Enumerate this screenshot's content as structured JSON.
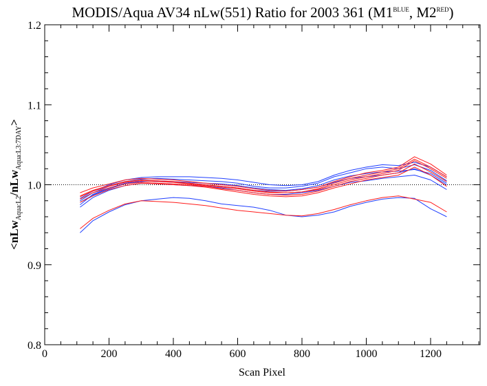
{
  "page_title": {
    "main": "MODIS/Aqua AV34 nLw(551) Ratio for 2003 361 (M1",
    "sup1": "BLUE",
    "mid": ", M2",
    "sup2": "RED",
    "end": ")"
  },
  "axes": {
    "xlabel": "Scan Pixel",
    "ylabel_parts": {
      "a": "<nLw",
      "sub1": "Aqua:L2",
      "b": "/nLw",
      "sub2": "Aqua:L3:7DAY",
      "c": ">"
    }
  },
  "chart_data": {
    "type": "line",
    "title": "MODIS/Aqua AV34 nLw(551) Ratio for 2003 361 (M1^BLUE, M2^RED)",
    "xlabel": "Scan Pixel",
    "ylabel": "<nLw Aqua:L2 / nLw Aqua:L3:7DAY>",
    "xlim": [
      0,
      1354
    ],
    "ylim": [
      0.8,
      1.2
    ],
    "x_ticks": [
      0,
      200,
      400,
      600,
      800,
      1000,
      1200
    ],
    "x_tick_labels": [
      "0",
      "200",
      "400",
      "600",
      "800",
      "1000",
      "1200"
    ],
    "y_ticks": [
      0.8,
      0.9,
      1.0,
      1.1,
      1.2
    ],
    "y_tick_labels": [
      "0.8",
      "0.9",
      "1.0",
      "1.1",
      "1.2"
    ],
    "reference_line": {
      "y": 1.0,
      "style": "dotted"
    },
    "series_colors": {
      "M1": "#1f3fff",
      "M2": "#ff1a1a"
    },
    "x": [
      110,
      150,
      200,
      250,
      300,
      350,
      400,
      450,
      500,
      550,
      600,
      650,
      700,
      750,
      800,
      850,
      900,
      950,
      1000,
      1050,
      1100,
      1150,
      1200,
      1250
    ],
    "series": [
      {
        "group": "M1",
        "color": "#1f3fff",
        "values": [
          0.975,
          0.988,
          0.996,
          1.002,
          1.005,
          1.004,
          1.003,
          1.002,
          1.0,
          0.998,
          0.996,
          0.993,
          0.992,
          0.992,
          0.994,
          0.997,
          1.003,
          1.008,
          1.01,
          1.012,
          1.015,
          1.02,
          1.012,
          1.0
        ]
      },
      {
        "group": "M1",
        "color": "#1f3fff",
        "values": [
          0.98,
          0.99,
          0.998,
          1.004,
          1.007,
          1.008,
          1.007,
          1.006,
          1.005,
          1.004,
          1.002,
          0.998,
          0.996,
          0.996,
          0.998,
          1.002,
          1.01,
          1.015,
          1.02,
          1.022,
          1.02,
          1.025,
          1.018,
          1.005
        ]
      },
      {
        "group": "M1",
        "color": "#1f3fff",
        "values": [
          0.983,
          0.992,
          1.0,
          1.006,
          1.009,
          1.01,
          1.01,
          1.01,
          1.009,
          1.008,
          1.006,
          1.003,
          1.0,
          0.999,
          1.0,
          1.004,
          1.012,
          1.018,
          1.022,
          1.025,
          1.024,
          1.028,
          1.022,
          1.01
        ]
      },
      {
        "group": "M1",
        "color": "#1f3fff",
        "values": [
          0.972,
          0.984,
          0.993,
          0.999,
          1.002,
          1.001,
          1.0,
          0.999,
          0.998,
          0.996,
          0.993,
          0.99,
          0.988,
          0.988,
          0.99,
          0.993,
          0.998,
          1.003,
          1.005,
          1.008,
          1.01,
          1.012,
          1.006,
          0.994
        ]
      },
      {
        "group": "M1",
        "color": "#1f3fff",
        "values": [
          0.978,
          0.987,
          0.995,
          1.001,
          1.004,
          1.005,
          1.004,
          1.003,
          1.002,
          1.001,
          0.999,
          0.996,
          0.994,
          0.993,
          0.995,
          0.999,
          1.006,
          1.011,
          1.014,
          1.016,
          1.017,
          1.019,
          1.014,
          1.002
        ]
      },
      {
        "group": "M1",
        "color": "#1f3fff",
        "values": [
          0.94,
          0.955,
          0.966,
          0.975,
          0.98,
          0.982,
          0.984,
          0.983,
          0.98,
          0.976,
          0.974,
          0.972,
          0.968,
          0.962,
          0.96,
          0.962,
          0.966,
          0.973,
          0.978,
          0.982,
          0.984,
          0.983,
          0.97,
          0.96
        ]
      },
      {
        "group": "M2",
        "color": "#ff1a1a",
        "values": [
          0.985,
          0.992,
          0.998,
          1.003,
          1.005,
          1.004,
          1.003,
          1.001,
          0.999,
          0.997,
          0.995,
          0.992,
          0.99,
          0.99,
          0.991,
          0.994,
          1.0,
          1.006,
          1.01,
          1.014,
          1.018,
          1.03,
          1.02,
          1.008
        ]
      },
      {
        "group": "M2",
        "color": "#ff1a1a",
        "values": [
          0.978,
          0.986,
          0.994,
          0.999,
          1.002,
          1.001,
          1.0,
          0.999,
          0.997,
          0.994,
          0.991,
          0.988,
          0.986,
          0.985,
          0.986,
          0.99,
          0.996,
          1.001,
          1.006,
          1.009,
          1.012,
          1.022,
          1.012,
          0.998
        ]
      },
      {
        "group": "M2",
        "color": "#ff1a1a",
        "values": [
          0.99,
          0.996,
          1.001,
          1.006,
          1.008,
          1.007,
          1.006,
          1.004,
          1.002,
          1.0,
          0.998,
          0.995,
          0.993,
          0.992,
          0.994,
          0.997,
          1.004,
          1.01,
          1.015,
          1.018,
          1.022,
          1.035,
          1.026,
          1.012
        ]
      },
      {
        "group": "M2",
        "color": "#ff1a1a",
        "values": [
          0.982,
          0.99,
          0.996,
          1.001,
          1.003,
          1.002,
          1.001,
          1.0,
          0.998,
          0.995,
          0.993,
          0.99,
          0.988,
          0.987,
          0.988,
          0.992,
          0.998,
          1.004,
          1.008,
          1.012,
          1.015,
          1.026,
          1.016,
          1.004
        ]
      },
      {
        "group": "M2",
        "color": "#ff1a1a",
        "values": [
          0.986,
          0.993,
          0.999,
          1.004,
          1.006,
          1.005,
          1.004,
          1.002,
          1.0,
          0.998,
          0.996,
          0.993,
          0.991,
          0.99,
          0.991,
          0.995,
          1.002,
          1.008,
          1.012,
          1.016,
          1.02,
          1.032,
          1.022,
          1.01
        ]
      },
      {
        "group": "M2",
        "color": "#ff1a1a",
        "values": [
          0.945,
          0.958,
          0.968,
          0.976,
          0.98,
          0.979,
          0.978,
          0.976,
          0.974,
          0.971,
          0.968,
          0.966,
          0.964,
          0.962,
          0.961,
          0.964,
          0.969,
          0.975,
          0.98,
          0.984,
          0.986,
          0.982,
          0.978,
          0.966
        ]
      }
    ]
  }
}
